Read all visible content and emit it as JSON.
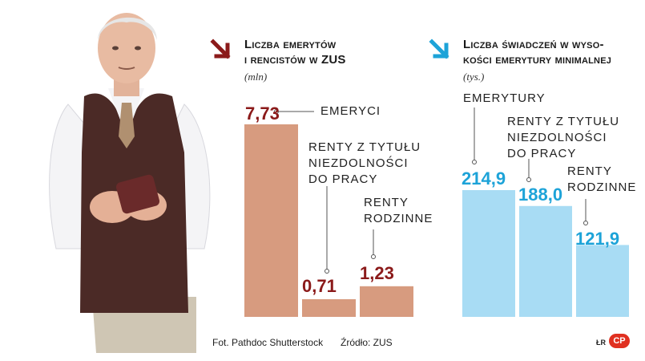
{
  "photo": {
    "subject": "elderly-man-with-wallet"
  },
  "left_chart": {
    "title_line1": "Liczba emerytów",
    "title_line2": "i rencistów w ZUS",
    "unit": "(mln)",
    "arrow_color": "#8b1a1a",
    "labels": {
      "emeryci": "EMERYCI",
      "renty_nz_1": "RENTY Z TYTUŁU",
      "renty_nz_2": "NIEZDOLNOŚCI",
      "renty_nz_3": "DO PRACY",
      "renty_r_1": "RENTY",
      "renty_r_2": "RODZINNE"
    },
    "value_labels": [
      "7,73",
      "0,71",
      "1,23"
    ]
  },
  "right_chart": {
    "title_line1": "Liczba świadczeń w wyso-",
    "title_line2": "kości emerytury minimalnej",
    "unit": "(tys.)",
    "arrow_color": "#1da3d8",
    "labels": {
      "emerytury": "EMERYTURY",
      "renty_nz_1": "RENTY Z TYTUŁU",
      "renty_nz_2": "NIEZDOLNOŚCI",
      "renty_nz_3": "DO PRACY",
      "renty_r_1": "RENTY",
      "renty_r_2": "RODZINNE"
    },
    "value_labels": [
      "214,9",
      "188,0",
      "121,9"
    ]
  },
  "chart_data": [
    {
      "type": "bar",
      "title": "Liczba emerytów i rencistów w ZUS",
      "ylabel": "(mln)",
      "categories": [
        "EMERYCI",
        "RENTY Z TYTUŁU NIEZDOLNOŚCI DO PRACY",
        "RENTY RODZINNE"
      ],
      "values": [
        7.73,
        0.71,
        1.23
      ],
      "ylim": [
        0,
        7.73
      ],
      "color": "#d79b7f"
    },
    {
      "type": "bar",
      "title": "Liczba świadczeń w wysokości emerytury minimalnej",
      "ylabel": "(tys.)",
      "categories": [
        "EMERYTURY",
        "RENTY Z TYTUŁU NIEZDOLNOŚCI DO PRACY",
        "RENTY RODZINNE"
      ],
      "values": [
        214.9,
        188.0,
        121.9
      ],
      "ylim": [
        0,
        214.9
      ],
      "color": "#a8dcf4"
    }
  ],
  "footer": {
    "photo_credit": "Fot. Pathdoc Shutterstock",
    "source": "Źródło: ZUS",
    "author": "ŁR",
    "logo": "CP"
  }
}
